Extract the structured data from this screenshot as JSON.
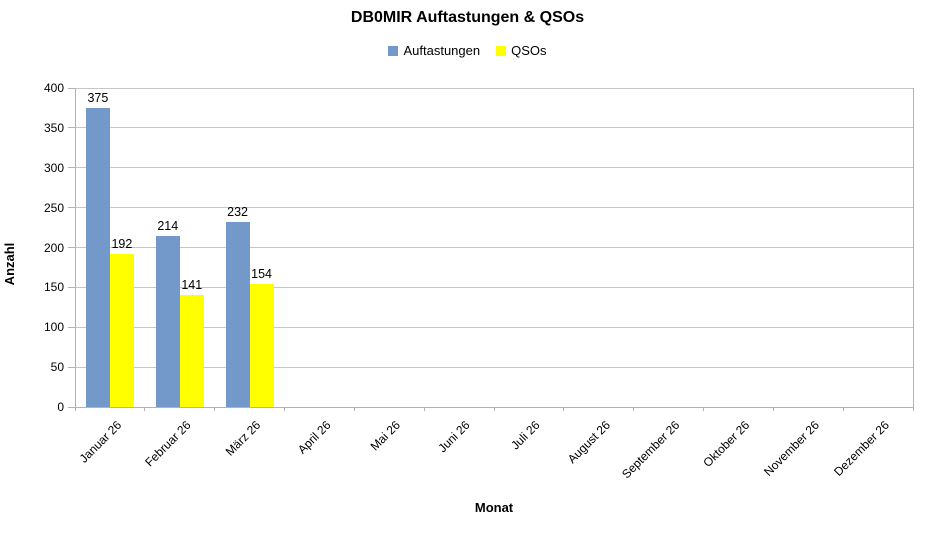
{
  "chart_data": {
    "type": "bar",
    "title": "DB0MIR Auftastungen & QSOs",
    "categories": [
      "Januar 26",
      "Februar 26",
      "März 26",
      "April 26",
      "Mai 26",
      "Juni 26",
      "Juli 26",
      "August 26",
      "September 26",
      "Oktober 26",
      "November 26",
      "Dezember 26"
    ],
    "series": [
      {
        "name": "Auftastungen",
        "color": "#7299C9",
        "values": [
          375,
          214,
          232,
          null,
          null,
          null,
          null,
          null,
          null,
          null,
          null,
          null
        ]
      },
      {
        "name": "QSOs",
        "color": "#FFFF00",
        "values": [
          192,
          141,
          154,
          null,
          null,
          null,
          null,
          null,
          null,
          null,
          null,
          null
        ]
      }
    ],
    "xlabel": "Monat",
    "ylabel": "Anzahl",
    "ylim": [
      0,
      400
    ],
    "ytick_step": 50,
    "grid": true,
    "legend_position": "top",
    "data_labels": true
  },
  "colors": {
    "grid": "#C6C6C6",
    "axis": "#B3B3B3",
    "text": "#000000",
    "background": "#FFFFFF"
  }
}
